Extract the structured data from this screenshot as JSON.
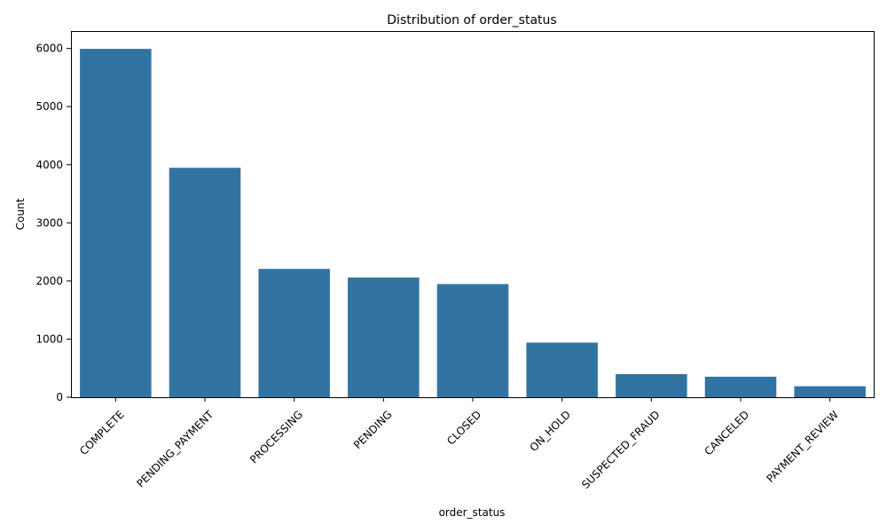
{
  "chart_data": {
    "type": "bar",
    "title": "Distribution of order_status",
    "xlabel": "order_status",
    "ylabel": "Count",
    "categories": [
      "COMPLETE",
      "PENDING_PAYMENT",
      "PROCESSING",
      "PENDING",
      "CLOSED",
      "ON_HOLD",
      "SUSPECTED_FRAUD",
      "CANCELED",
      "PAYMENT_REVIEW"
    ],
    "values": [
      5993,
      3947,
      2208,
      2059,
      1947,
      939,
      398,
      353,
      189
    ],
    "ylim": [
      0,
      6300
    ],
    "yticks": [
      0,
      1000,
      2000,
      3000,
      4000,
      5000,
      6000
    ],
    "grid": false,
    "legend": "none",
    "bar_color": "#3274a1"
  }
}
